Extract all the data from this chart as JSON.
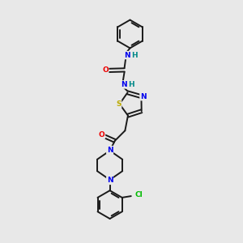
{
  "background_color": "#e8e8e8",
  "bond_color": "#1a1a1a",
  "bond_width": 1.4,
  "atom_colors": {
    "N": "#0000ee",
    "O": "#ee0000",
    "S": "#bbaa00",
    "Cl": "#00bb00",
    "C": "#1a1a1a",
    "H": "#008888"
  },
  "font_size": 6.5,
  "fig_width": 3.0,
  "fig_height": 3.0,
  "dpi": 100
}
